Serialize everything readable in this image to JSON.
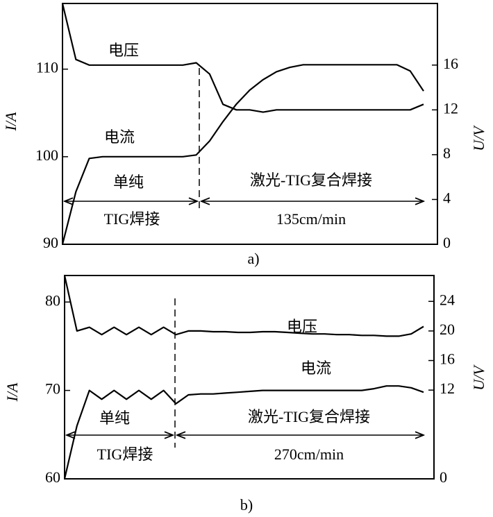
{
  "chart_data": [
    {
      "type": "line",
      "label": "a)",
      "ylabel": "I/A",
      "y2label": "U/V",
      "ylim": [
        90,
        117.5
      ],
      "yticks": [
        90,
        100,
        110
      ],
      "y2lim": [
        0,
        21.5
      ],
      "y2ticks": [
        0,
        4,
        8,
        12,
        16
      ],
      "annotations": [
        "单纯",
        "TIG焊接",
        "激光-TIG复合焊接",
        "135cm/min"
      ],
      "series": [
        {
          "name": "电压",
          "axis": "y2",
          "color": "#000000",
          "values": [
            21.5,
            16.5,
            16,
            16,
            16,
            16,
            16,
            16,
            16,
            16,
            16.2,
            15.2,
            12.5,
            12,
            12,
            11.8,
            12,
            12,
            12,
            12,
            12,
            12,
            12,
            12,
            12,
            12,
            12,
            12.5
          ]
        },
        {
          "name": "电流",
          "axis": "y",
          "color": "#000000",
          "values": [
            90,
            96,
            99.8,
            100,
            100,
            100,
            100,
            100,
            100,
            100,
            100.2,
            101.8,
            104,
            106,
            107.6,
            108.8,
            109.7,
            110.2,
            110.5,
            110.5,
            110.5,
            110.5,
            110.5,
            110.5,
            110.5,
            110.5,
            109.8,
            107.5
          ]
        }
      ]
    },
    {
      "type": "line",
      "label": "b)",
      "ylabel": "I/A",
      "y2label": "U/V",
      "ylim": [
        60,
        83
      ],
      "yticks": [
        60,
        70,
        80
      ],
      "y2lim": [
        0,
        27.5
      ],
      "y2ticks": [
        0,
        12,
        16,
        20,
        24
      ],
      "annotations": [
        "单纯",
        "TIG焊接",
        "激光-TIG复合焊接",
        "270cm/min"
      ],
      "series": [
        {
          "name": "电压",
          "axis": "y2",
          "color": "#000000",
          "values": [
            27.5,
            20,
            20.5,
            19.5,
            20.5,
            19.5,
            20.5,
            19.5,
            20.5,
            19.5,
            20,
            20,
            19.9,
            19.9,
            19.8,
            19.8,
            19.9,
            19.9,
            19.8,
            19.7,
            19.6,
            19.6,
            19.5,
            19.5,
            19.4,
            19.4,
            19.3,
            19.3,
            19.6,
            20.6
          ]
        },
        {
          "name": "电流",
          "axis": "y",
          "color": "#000000",
          "values": [
            60,
            66,
            70,
            69,
            70,
            69,
            70,
            69,
            70,
            68.5,
            69.5,
            69.6,
            69.6,
            69.7,
            69.8,
            69.9,
            70,
            70,
            70,
            70,
            70,
            70,
            70,
            70,
            70,
            70.2,
            70.5,
            70.5,
            70.3,
            69.8
          ]
        }
      ]
    }
  ]
}
